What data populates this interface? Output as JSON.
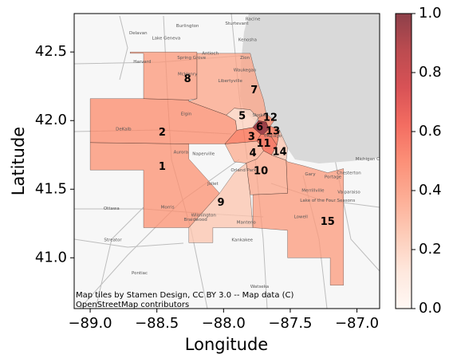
{
  "map": {
    "xlabel": "Longitude",
    "ylabel": "Latitude",
    "xlim": [
      -89.12,
      -86.83
    ],
    "ylim": [
      40.63,
      42.78
    ],
    "xticks": [
      {
        "value": -89.0,
        "label": "−89.0"
      },
      {
        "value": -88.5,
        "label": "−88.5"
      },
      {
        "value": -88.0,
        "label": "−88.0"
      },
      {
        "value": -87.5,
        "label": "−87.5"
      },
      {
        "value": -87.0,
        "label": "−87.0"
      }
    ],
    "yticks": [
      {
        "value": 42.5,
        "label": "42.5"
      },
      {
        "value": 42.0,
        "label": "42.0"
      },
      {
        "value": 41.5,
        "label": "41.5"
      },
      {
        "value": 41.0,
        "label": "41.0"
      }
    ],
    "attribution_lines": [
      "Map tiles by Stamen Design, CC BY 3.0 -- Map data (C)",
      "OpenStreetMap contributors"
    ],
    "colorbar": {
      "colormap": "Reds",
      "range": [
        0.0,
        1.0
      ],
      "ticks": [
        {
          "value": 0.0,
          "label": "0.0"
        },
        {
          "value": 0.2,
          "label": "0.2"
        },
        {
          "value": 0.4,
          "label": "0.4"
        },
        {
          "value": 0.6,
          "label": "0.6"
        },
        {
          "value": 0.8,
          "label": "0.8"
        },
        {
          "value": 1.0,
          "label": "1.0"
        }
      ]
    },
    "lake_color": "#d9d9d9",
    "regions": [
      {
        "id": "1",
        "value": 0.38,
        "label_lon": -88.46,
        "label_lat": 41.66
      },
      {
        "id": "2",
        "value": 0.4,
        "label_lon": -88.46,
        "label_lat": 41.91
      },
      {
        "id": "3",
        "value": 0.5,
        "label_lon": -87.79,
        "label_lat": 41.88
      },
      {
        "id": "4",
        "value": 0.3,
        "label_lon": -87.78,
        "label_lat": 41.76
      },
      {
        "id": "5",
        "value": 0.18,
        "label_lon": -87.86,
        "label_lat": 42.03
      },
      {
        "id": "6",
        "value": 0.95,
        "label_lon": -87.73,
        "label_lat": 41.95
      },
      {
        "id": "7",
        "value": 0.32,
        "label_lon": -87.77,
        "label_lat": 42.22
      },
      {
        "id": "8",
        "value": 0.36,
        "label_lon": -88.27,
        "label_lat": 42.3
      },
      {
        "id": "9",
        "value": 0.22,
        "label_lon": -88.02,
        "label_lat": 41.4
      },
      {
        "id": "10",
        "value": 0.32,
        "label_lon": -87.72,
        "label_lat": 41.63
      },
      {
        "id": "11",
        "value": 0.55,
        "label_lon": -87.7,
        "label_lat": 41.83
      },
      {
        "id": "12",
        "value": 0.42,
        "label_lon": -87.65,
        "label_lat": 42.02
      },
      {
        "id": "13",
        "value": 0.5,
        "label_lon": -87.63,
        "label_lat": 41.92
      },
      {
        "id": "14",
        "value": 0.22,
        "label_lon": -87.58,
        "label_lat": 41.77
      },
      {
        "id": "15",
        "value": 0.35,
        "label_lon": -87.22,
        "label_lat": 41.26
      }
    ],
    "basemap_places": [
      {
        "name": "Burlington",
        "lon": -88.27,
        "lat": 42.68
      },
      {
        "name": "Sturtevant",
        "lon": -87.9,
        "lat": 42.7
      },
      {
        "name": "Racine",
        "lon": -87.78,
        "lat": 42.73
      },
      {
        "name": "Delavan",
        "lon": -88.64,
        "lat": 42.63
      },
      {
        "name": "Lake Geneva",
        "lon": -88.43,
        "lat": 42.59
      },
      {
        "name": "Kenosha",
        "lon": -87.82,
        "lat": 42.58
      },
      {
        "name": "Harvard",
        "lon": -88.61,
        "lat": 42.42
      },
      {
        "name": "Spring Grove",
        "lon": -88.24,
        "lat": 42.45
      },
      {
        "name": "Antioch",
        "lon": -88.1,
        "lat": 42.48
      },
      {
        "name": "Zion",
        "lon": -87.84,
        "lat": 42.45
      },
      {
        "name": "Waukegan",
        "lon": -87.84,
        "lat": 42.36
      },
      {
        "name": "McHenry",
        "lon": -88.27,
        "lat": 42.33
      },
      {
        "name": "Libertyville",
        "lon": -87.95,
        "lat": 42.28
      },
      {
        "name": "Elgin",
        "lon": -88.28,
        "lat": 42.04
      },
      {
        "name": "Skokie",
        "lon": -87.73,
        "lat": 42.03
      },
      {
        "name": "Chicago",
        "lon": -87.63,
        "lat": 41.88
      },
      {
        "name": "DeKalb",
        "lon": -88.75,
        "lat": 41.93
      },
      {
        "name": "Aurora",
        "lon": -88.32,
        "lat": 41.76
      },
      {
        "name": "Naperville",
        "lon": -88.15,
        "lat": 41.75
      },
      {
        "name": "Joliet",
        "lon": -88.08,
        "lat": 41.53
      },
      {
        "name": "Orland Park",
        "lon": -87.85,
        "lat": 41.63
      },
      {
        "name": "Gary",
        "lon": -87.35,
        "lat": 41.6
      },
      {
        "name": "Merrillville",
        "lon": -87.33,
        "lat": 41.48
      },
      {
        "name": "Ottawa",
        "lon": -88.84,
        "lat": 41.35
      },
      {
        "name": "Morris",
        "lon": -88.42,
        "lat": 41.36
      },
      {
        "name": "Wilmington",
        "lon": -88.15,
        "lat": 41.3
      },
      {
        "name": "Braidwood",
        "lon": -88.21,
        "lat": 41.27
      },
      {
        "name": "Manteno",
        "lon": -87.83,
        "lat": 41.25
      },
      {
        "name": "Kankakee",
        "lon": -87.86,
        "lat": 41.12
      },
      {
        "name": "Lowell",
        "lon": -87.42,
        "lat": 41.29
      },
      {
        "name": "Lake of the Four Seasons",
        "lon": -87.22,
        "lat": 41.41
      },
      {
        "name": "Streator",
        "lon": -88.83,
        "lat": 41.12
      },
      {
        "name": "Pontiac",
        "lon": -88.63,
        "lat": 40.88
      },
      {
        "name": "Watseka",
        "lon": -87.73,
        "lat": 40.78
      },
      {
        "name": "Michigan City",
        "lon": -86.9,
        "lat": 41.71
      },
      {
        "name": "Chesterton",
        "lon": -87.06,
        "lat": 41.61
      },
      {
        "name": "Valparaiso",
        "lon": -87.06,
        "lat": 41.47
      },
      {
        "name": "Portage",
        "lon": -87.18,
        "lat": 41.58
      }
    ]
  }
}
